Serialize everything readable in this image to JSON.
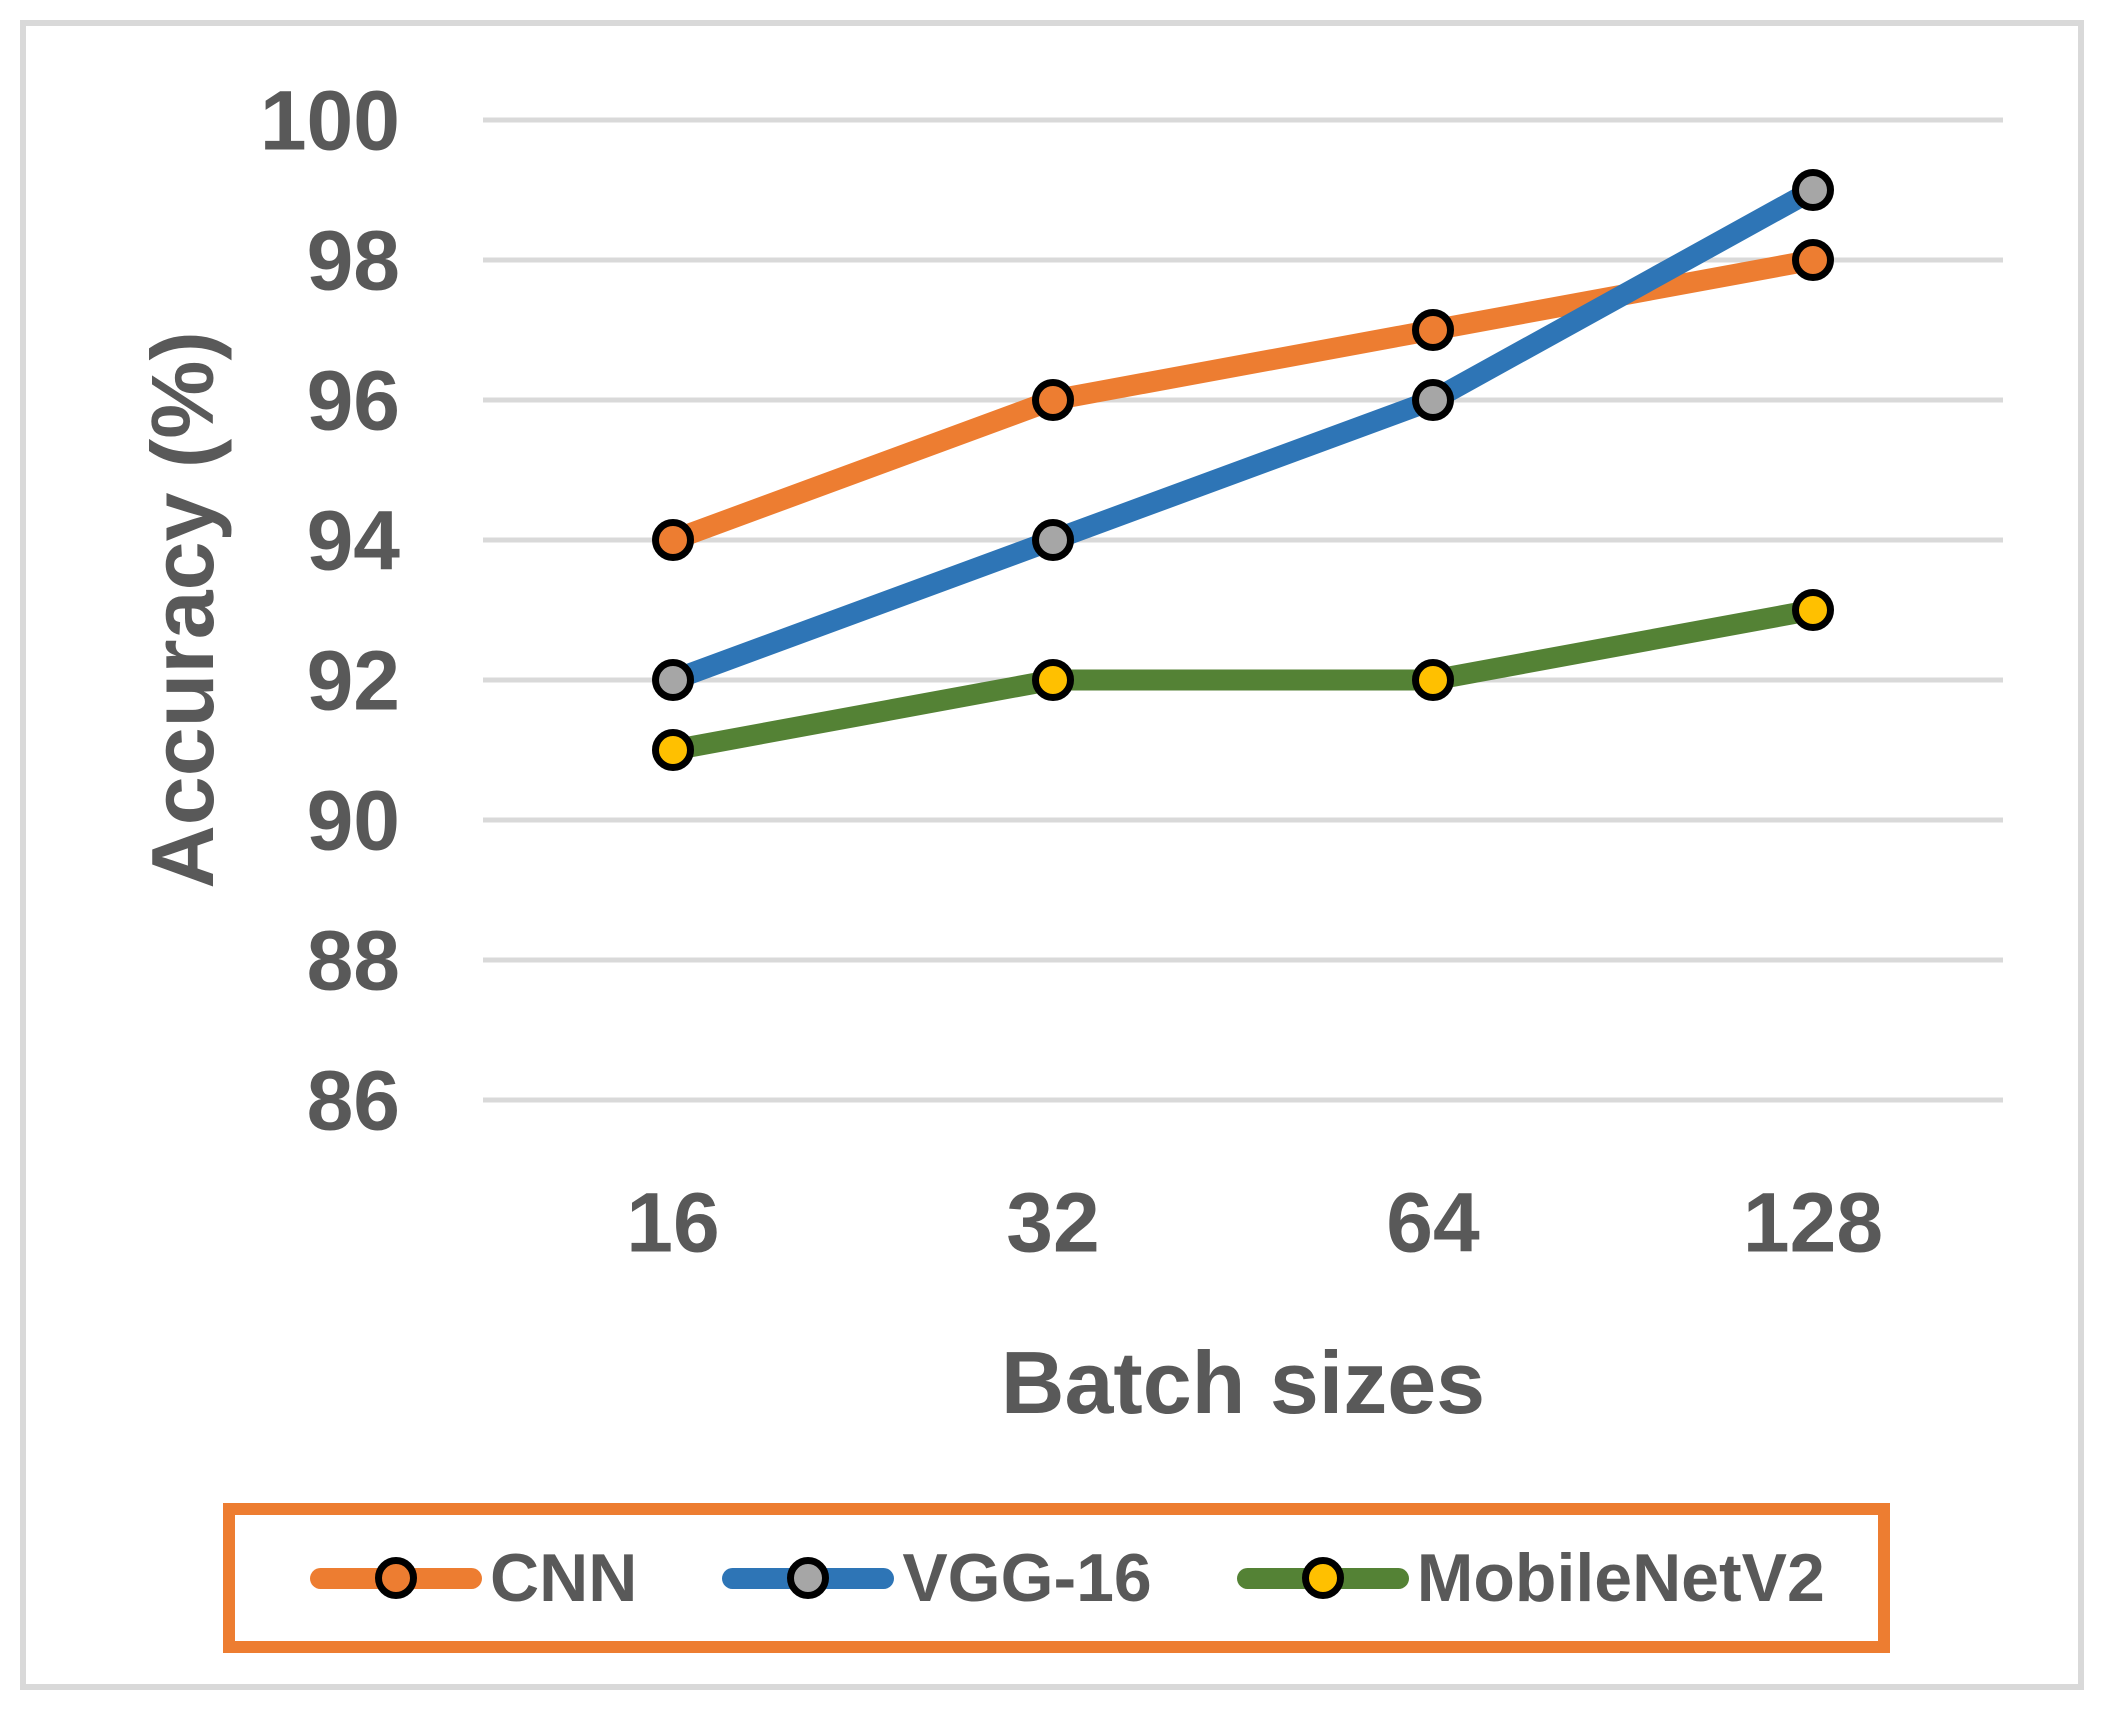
{
  "chart_data": {
    "type": "line",
    "title": "",
    "xlabel": "Batch sizes",
    "ylabel": "Accuracy (%)",
    "categories": [
      "16",
      "32",
      "64",
      "128"
    ],
    "series": [
      {
        "name": "CNN",
        "values": [
          94,
          96,
          97,
          98
        ],
        "line_color": "#ED7D31",
        "marker_fill": "#ED7D31"
      },
      {
        "name": "VGG-16",
        "values": [
          92,
          94,
          96,
          99
        ],
        "line_color": "#2E75B6",
        "marker_fill": "#A6A6A6"
      },
      {
        "name": "MobileNetV2",
        "values": [
          91,
          92,
          92,
          93
        ],
        "line_color": "#548235",
        "marker_fill": "#FFC000"
      }
    ],
    "ylim": [
      86,
      100
    ],
    "yticks": [
      100,
      98,
      96,
      94,
      92,
      90,
      88,
      86
    ],
    "grid": "horizontal",
    "legend_position": "bottom"
  },
  "colors": {
    "background": "#FFFFFF",
    "text": "#595959",
    "gridline": "#D9D9D9",
    "frame": "#D9D9D9",
    "legend_border": "#ED7D31",
    "marker_outline": "#000000"
  }
}
